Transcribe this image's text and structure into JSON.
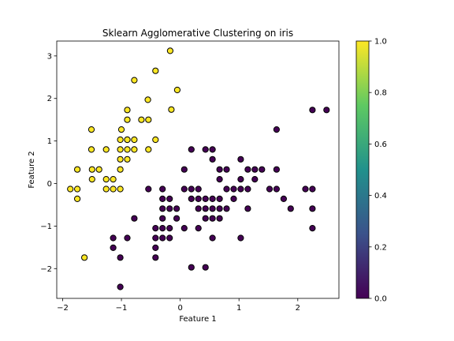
{
  "chart_data": {
    "type": "scatter",
    "title": "Sklearn Agglomerative Clustering on iris",
    "xlabel": "Feature 1",
    "ylabel": "Feature 2",
    "xlim": [
      -2.1,
      2.7
    ],
    "ylim": [
      -2.7,
      3.35
    ],
    "xticks": [
      -2,
      -1,
      0,
      1,
      2
    ],
    "yticks": [
      -2,
      -1,
      0,
      1,
      2,
      3
    ],
    "grid": false,
    "colorbar": {
      "ticks": [
        "0.0",
        "0.2",
        "0.4",
        "0.6",
        "0.8",
        "1.0"
      ],
      "tick_values": [
        0,
        0.2,
        0.4,
        0.6,
        0.8,
        1.0
      ],
      "colormap": "viridis",
      "stops": [
        "#440154",
        "#3b528b",
        "#21918c",
        "#5ec962",
        "#fde725"
      ]
    },
    "marker_edge_color": "#000000",
    "series": [
      {
        "cluster": 1,
        "color": "#fde725",
        "points": [
          [
            -0.17,
            3.12
          ],
          [
            -0.78,
            2.43
          ],
          [
            -0.42,
            2.65
          ],
          [
            -0.05,
            2.2
          ],
          [
            -0.55,
            1.97
          ],
          [
            -0.9,
            1.73
          ],
          [
            -0.15,
            1.74
          ],
          [
            -0.9,
            1.5
          ],
          [
            -0.66,
            1.5
          ],
          [
            -0.54,
            1.5
          ],
          [
            -1.51,
            1.27
          ],
          [
            -1.0,
            1.27
          ],
          [
            -1.02,
            1.03
          ],
          [
            -0.9,
            1.03
          ],
          [
            -0.78,
            1.03
          ],
          [
            -0.9,
            1.03
          ],
          [
            -0.42,
            1.03
          ],
          [
            -1.51,
            0.8
          ],
          [
            -1.26,
            0.8
          ],
          [
            -1.02,
            0.8
          ],
          [
            -0.9,
            0.8
          ],
          [
            -0.78,
            0.8
          ],
          [
            -0.54,
            0.8
          ],
          [
            -1.02,
            0.57
          ],
          [
            -0.9,
            0.57
          ],
          [
            -1.75,
            0.33
          ],
          [
            -1.5,
            0.33
          ],
          [
            -1.38,
            0.33
          ],
          [
            -1.02,
            0.33
          ],
          [
            -1.26,
            0.1
          ],
          [
            -1.14,
            0.1
          ],
          [
            -1.5,
            0.1
          ],
          [
            -1.87,
            -0.13
          ],
          [
            -1.75,
            -0.13
          ],
          [
            -1.26,
            -0.13
          ],
          [
            -1.14,
            -0.13
          ],
          [
            -1.02,
            -0.13
          ],
          [
            -1.75,
            -0.36
          ],
          [
            -1.63,
            -1.74
          ]
        ]
      },
      {
        "cluster": 0,
        "color": "#440154",
        "points": [
          [
            2.25,
            1.73
          ],
          [
            2.49,
            1.73
          ],
          [
            1.64,
            1.27
          ],
          [
            0.19,
            0.8
          ],
          [
            0.43,
            0.8
          ],
          [
            0.55,
            0.8
          ],
          [
            0.55,
            0.57
          ],
          [
            1.03,
            0.57
          ],
          [
            0.07,
            0.33
          ],
          [
            0.67,
            0.33
          ],
          [
            0.79,
            0.33
          ],
          [
            1.15,
            0.33
          ],
          [
            1.27,
            0.33
          ],
          [
            1.39,
            0.33
          ],
          [
            1.64,
            0.33
          ],
          [
            0.67,
            0.1
          ],
          [
            1.03,
            0.1
          ],
          [
            1.27,
            0.1
          ],
          [
            -0.54,
            -0.13
          ],
          [
            0.07,
            -0.13
          ],
          [
            0.19,
            -0.13
          ],
          [
            0.31,
            -0.13
          ],
          [
            0.79,
            -0.13
          ],
          [
            0.91,
            -0.13
          ],
          [
            1.03,
            -0.13
          ],
          [
            1.15,
            -0.13
          ],
          [
            1.52,
            -0.13
          ],
          [
            1.64,
            -0.13
          ],
          [
            2.13,
            -0.13
          ],
          [
            2.25,
            -0.13
          ],
          [
            -0.3,
            -0.13
          ],
          [
            -0.3,
            -0.36
          ],
          [
            -0.18,
            -0.36
          ],
          [
            0.19,
            -0.36
          ],
          [
            0.31,
            -0.36
          ],
          [
            0.43,
            -0.36
          ],
          [
            0.55,
            -0.36
          ],
          [
            0.67,
            -0.36
          ],
          [
            0.91,
            -0.36
          ],
          [
            1.76,
            -0.36
          ],
          [
            -0.3,
            -0.59
          ],
          [
            -0.18,
            -0.59
          ],
          [
            -0.06,
            -0.59
          ],
          [
            0.31,
            -0.59
          ],
          [
            0.43,
            -0.59
          ],
          [
            0.55,
            -0.59
          ],
          [
            0.67,
            -0.59
          ],
          [
            0.79,
            -0.59
          ],
          [
            1.15,
            -0.59
          ],
          [
            1.88,
            -0.59
          ],
          [
            2.25,
            -0.59
          ],
          [
            -0.3,
            -0.82
          ],
          [
            -0.06,
            -0.82
          ],
          [
            -0.78,
            -0.82
          ],
          [
            0.43,
            -0.82
          ],
          [
            0.55,
            -0.82
          ],
          [
            0.67,
            -0.82
          ],
          [
            -0.42,
            -1.05
          ],
          [
            -0.3,
            -1.05
          ],
          [
            -0.18,
            -1.05
          ],
          [
            0.07,
            -1.05
          ],
          [
            0.31,
            -1.05
          ],
          [
            2.25,
            -1.05
          ],
          [
            -1.14,
            -1.28
          ],
          [
            -0.9,
            -1.28
          ],
          [
            -0.42,
            -1.28
          ],
          [
            -0.3,
            -1.28
          ],
          [
            -0.18,
            -1.28
          ],
          [
            0.55,
            -1.28
          ],
          [
            1.03,
            -1.28
          ],
          [
            -1.14,
            -1.51
          ],
          [
            -0.42,
            -1.51
          ],
          [
            -1.02,
            -1.74
          ],
          [
            -0.42,
            -1.74
          ],
          [
            0.19,
            -1.97
          ],
          [
            0.43,
            -1.97
          ],
          [
            -1.02,
            -2.43
          ]
        ]
      }
    ]
  }
}
